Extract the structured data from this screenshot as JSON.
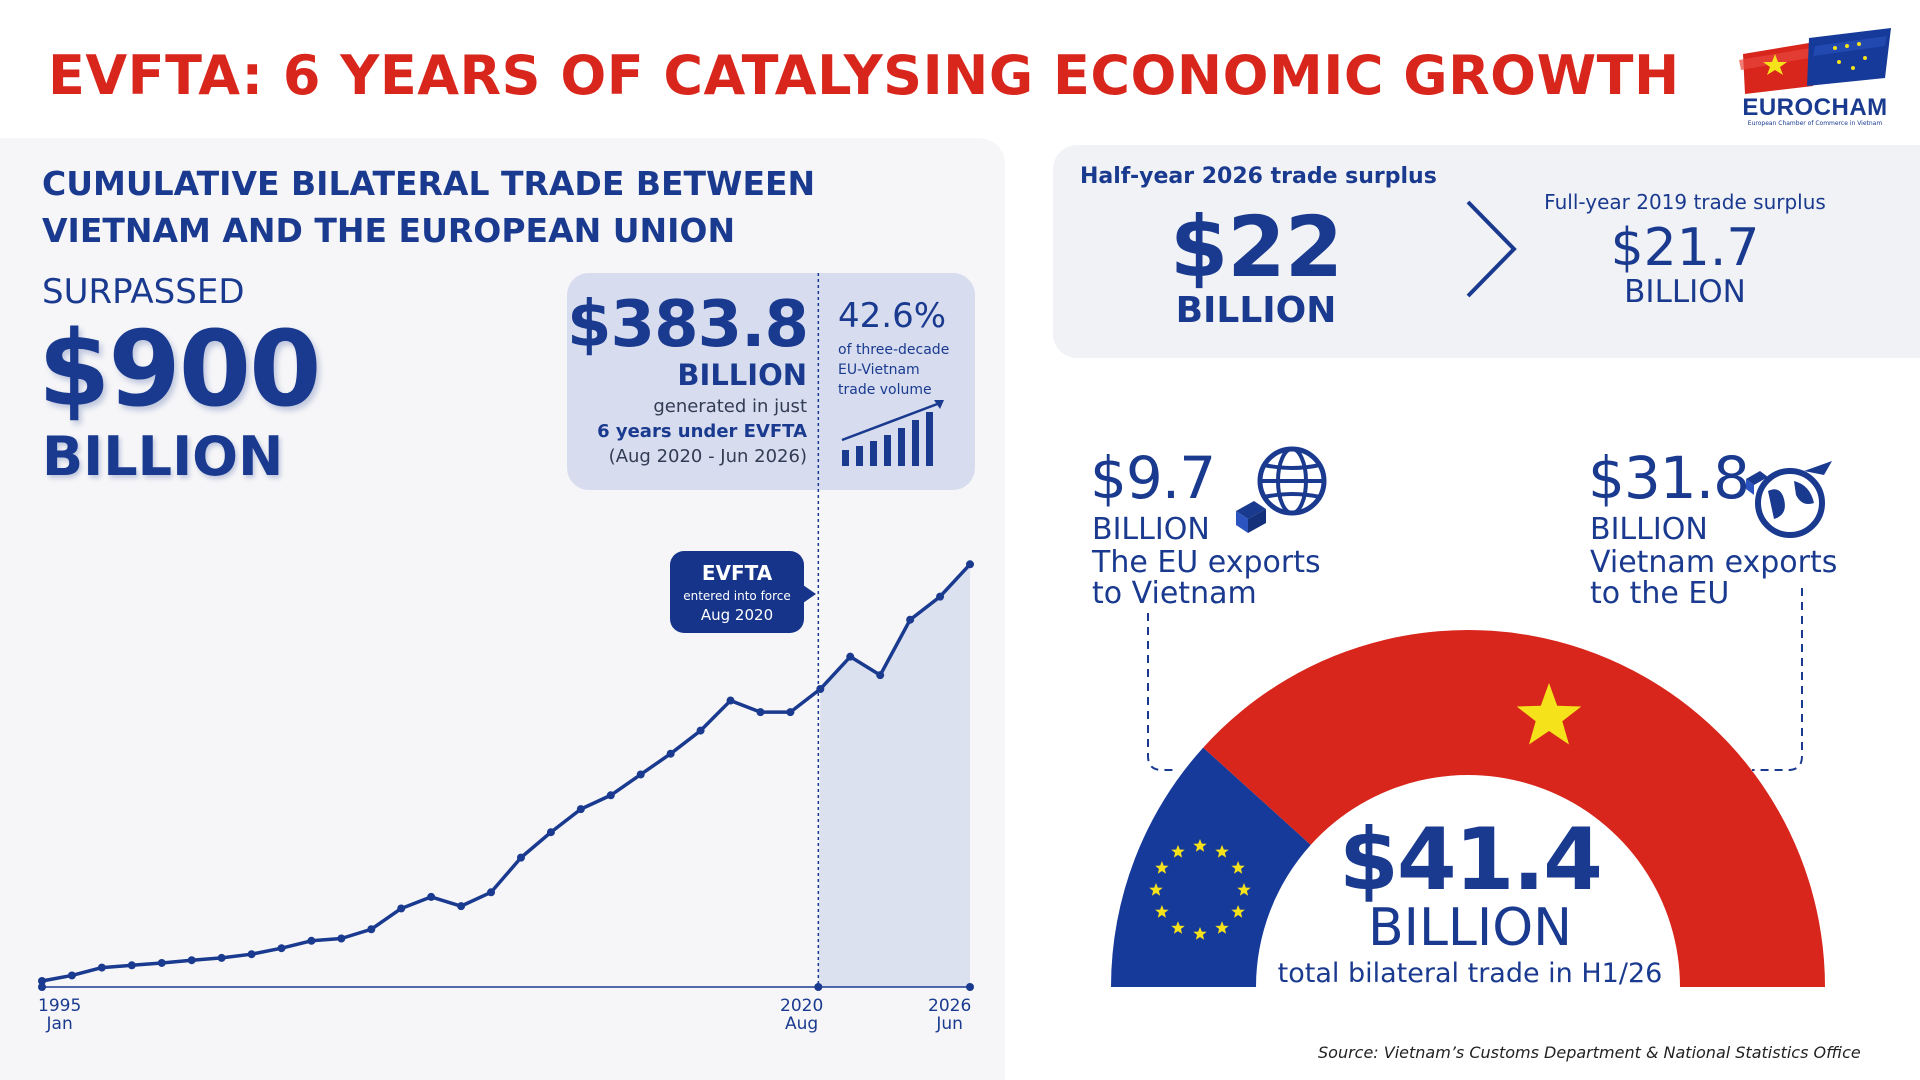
{
  "title": "EVFTA: 6 YEARS OF CATALYSING ECONOMIC GROWTH",
  "logo": {
    "name": "EUROCHAM",
    "subtitle": "European Chamber of Commerce in Vietnam"
  },
  "cumulative": {
    "heading_line1": "CUMULATIVE BILATERAL TRADE BETWEEN",
    "heading_line2": "VIETNAM AND THE EUROPEAN UNION",
    "surpassed": "SURPASSED",
    "amount": "$900",
    "unit": "BILLION"
  },
  "evfta_stat": {
    "amount": "$383.8",
    "unit": "BILLION",
    "desc_line1": "generated in just",
    "desc_line2": "6 years under EVFTA",
    "desc_line3": "(Aug 2020 - Jun 2026)",
    "pct": "42.6%",
    "pct_desc_line1": "of three-decade",
    "pct_desc_line2": "EU-Vietnam",
    "pct_desc_line3": "trade volume"
  },
  "evfta_marker": {
    "title": "EVFTA",
    "sub": "entered into force",
    "date": "Aug 2020"
  },
  "axis_labels": [
    {
      "year": "1995",
      "month": "Jan"
    },
    {
      "year": "2020",
      "month": "Aug"
    },
    {
      "year": "2026",
      "month": "Jun"
    }
  ],
  "colors": {
    "blue": "#1a3a8f",
    "red": "#d8261c",
    "yellow": "#f6e21a",
    "eu_blue": "#163a9a",
    "shade": "#d7ddef"
  },
  "chart_data": {
    "type": "line",
    "title": "CUMULATIVE BILATERAL TRADE BETWEEN VIETNAM AND THE EUROPEAN UNION",
    "xlabel": "",
    "ylabel": "",
    "x_range": [
      "1995 Jan",
      "2026 Jun"
    ],
    "highlight_from": "2020 Aug",
    "series": [
      {
        "values": [
          1.3,
          2.5,
          4.2,
          4.7,
          5.2,
          5.8,
          6.3,
          7.1,
          8.4,
          10.0,
          10.5,
          12.5,
          17.0,
          19.5,
          17.5,
          20.5,
          28.0,
          33.5,
          38.5,
          41.5,
          46.0,
          50.5,
          55.5,
          62.0,
          59.5,
          59.5,
          64.5,
          71.5,
          67.5,
          79.5,
          84.5,
          91.5
        ]
      }
    ],
    "ylim": [
      0,
      100
    ],
    "grid": false
  },
  "surplus": {
    "title": "Half-year 2026 trade surplus",
    "amount": "$22",
    "unit": "BILLION",
    "compare_title": "Full-year 2019 trade surplus",
    "compare_amount": "$21.7",
    "compare_unit": "BILLION"
  },
  "eu_exports": {
    "amount": "$9.7",
    "unit": "BILLION",
    "line1": "The EU exports",
    "line2": "to Vietnam",
    "icon": "globe-icon"
  },
  "vn_exports": {
    "amount": "$31.8",
    "unit": "BILLION",
    "line1": "Vietnam exports",
    "line2": "to the EU",
    "icon": "airplane-globe-icon"
  },
  "total": {
    "amount": "$41.4",
    "unit": "BILLION",
    "desc": "total bilateral trade in H1/26",
    "eu_share": 0.234
  },
  "source": "Source: Vietnam’s Customs Department & National Statistics Office"
}
